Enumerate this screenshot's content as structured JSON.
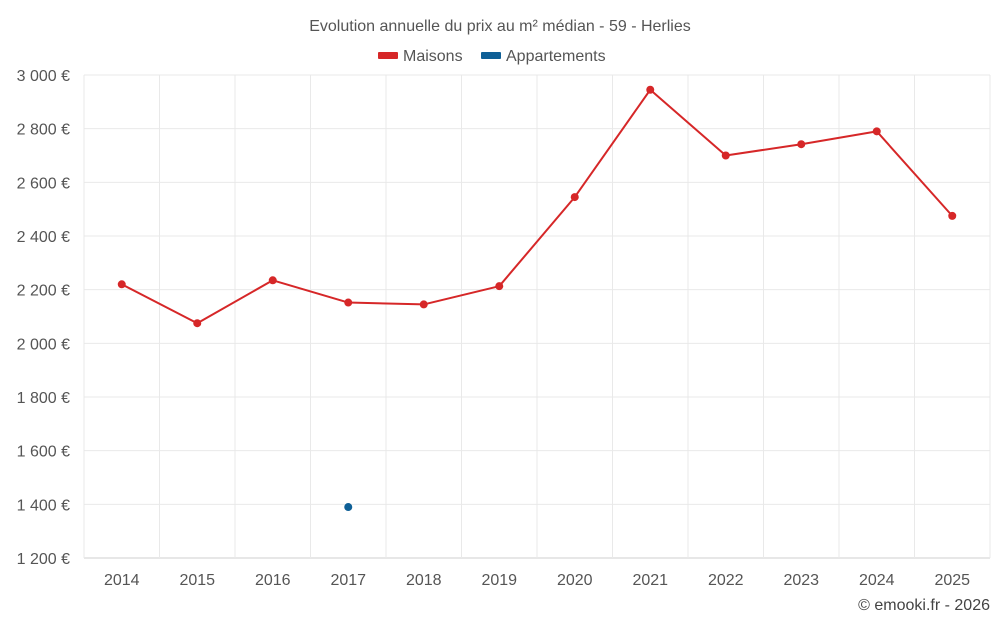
{
  "chart_data": {
    "type": "line",
    "title": "Evolution annuelle du prix au m² médian - 59 - Herlies",
    "x": [
      "2014",
      "2015",
      "2016",
      "2017",
      "2018",
      "2019",
      "2020",
      "2021",
      "2022",
      "2023",
      "2024",
      "2025"
    ],
    "series": [
      {
        "name": "Maisons",
        "color": "#d62728",
        "values": [
          2220,
          2075,
          2235,
          2152,
          2145,
          2213,
          2545,
          2945,
          2700,
          2742,
          2790,
          2475
        ]
      },
      {
        "name": "Appartements",
        "color": "#0e5f96",
        "values": [
          null,
          null,
          null,
          1390,
          null,
          null,
          null,
          null,
          null,
          null,
          null,
          null
        ]
      }
    ],
    "ylim": [
      1200,
      3000
    ],
    "yticks": [
      1200,
      1400,
      1600,
      1800,
      2000,
      2200,
      2400,
      2600,
      2800,
      3000
    ],
    "ytick_labels": [
      "1 200 €",
      "1 400 €",
      "1 600 €",
      "1 800 €",
      "2 000 €",
      "2 200 €",
      "2 400 €",
      "2 600 €",
      "2 800 €",
      "3 000 €"
    ],
    "xlabel": "",
    "ylabel": "",
    "grid": true,
    "legend_position": "top-center"
  },
  "credit": "© emooki.fr - 2026"
}
